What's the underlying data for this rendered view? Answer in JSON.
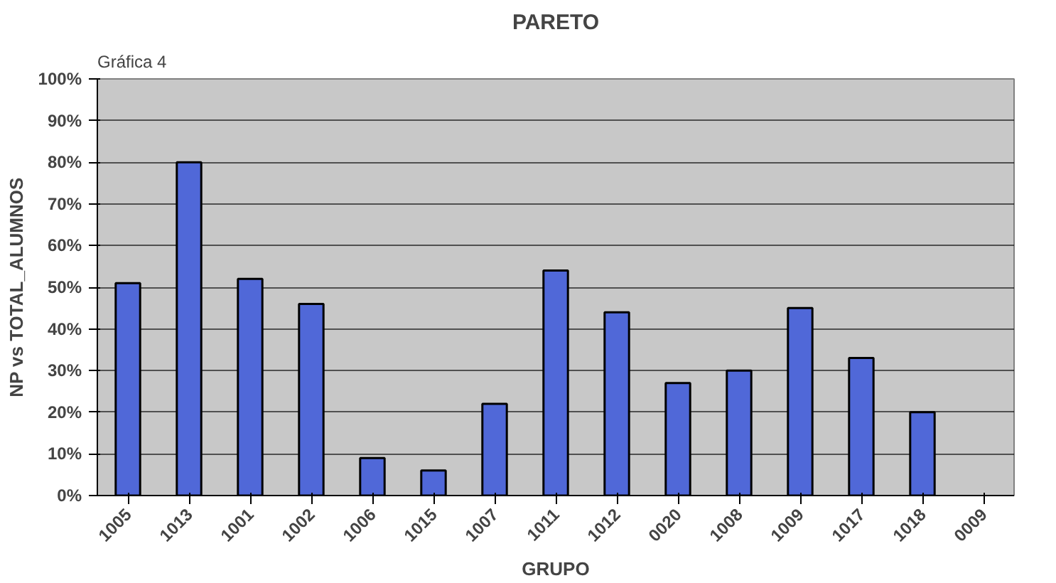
{
  "chart_data": {
    "type": "bar",
    "title": "PARETO",
    "annotations": [
      "Gráfica 4"
    ],
    "xlabel": "GRUPO",
    "ylabel": "NP vs TOTAL_ALUMNOS",
    "categories": [
      "1005",
      "1013",
      "1001",
      "1002",
      "1006",
      "1015",
      "1007",
      "1011",
      "1012",
      "0020",
      "1008",
      "1009",
      "1017",
      "1018",
      "0009"
    ],
    "values": [
      51,
      80,
      52,
      46,
      9,
      6,
      22,
      54,
      44,
      27,
      30,
      45,
      33,
      20,
      null
    ],
    "color": "#5068d8",
    "ylim": [
      0,
      100
    ],
    "yticks": [
      {
        "value": 0,
        "label": "0%"
      },
      {
        "value": 10,
        "label": "10%"
      },
      {
        "value": 20,
        "label": "20%"
      },
      {
        "value": 30,
        "label": "30%"
      },
      {
        "value": 40,
        "label": "40%"
      },
      {
        "value": 50,
        "label": "50%"
      },
      {
        "value": 60,
        "label": "60%"
      },
      {
        "value": 70,
        "label": "70%"
      },
      {
        "value": 80,
        "label": "80%"
      },
      {
        "value": 90,
        "label": "90%"
      },
      {
        "value": 100,
        "label": "100%"
      }
    ],
    "grid": "y"
  }
}
